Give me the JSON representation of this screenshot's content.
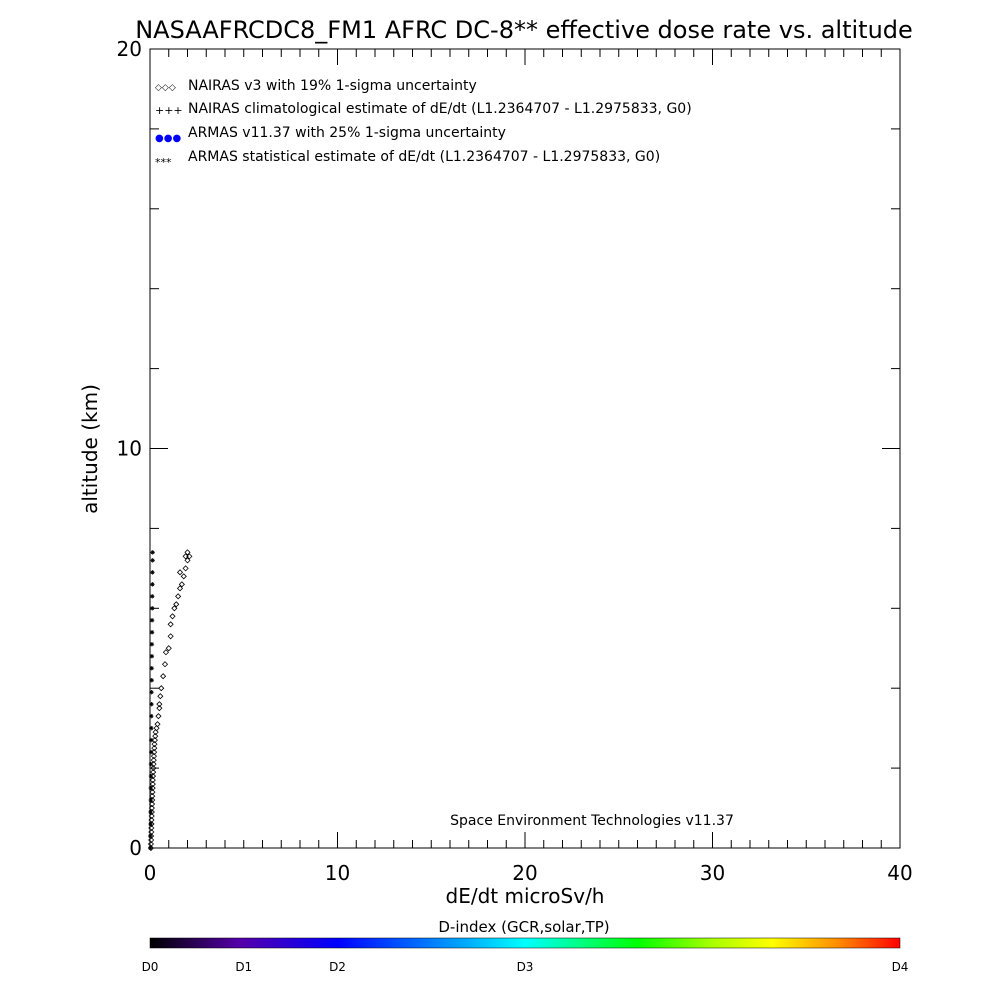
{
  "chart_data": {
    "type": "scatter",
    "title": "NASAAFRCDC8_FM1 AFRC DC-8** effective dose rate vs. altitude",
    "xlabel": "dE/dt microSv/h",
    "ylabel": "altitude (km)",
    "xlim": [
      0,
      40
    ],
    "ylim": [
      0,
      20
    ],
    "x_ticks": [
      0,
      10,
      20,
      30,
      40
    ],
    "y_ticks": [
      0,
      10,
      20
    ],
    "x_minor_step": 1,
    "y_minor_step": 2,
    "grid": false,
    "legend_position": "top-left",
    "legend": [
      {
        "symbol": "◇◇◇",
        "label": "NAIRAS v3 with 19% 1-sigma uncertainty",
        "color": "#000000"
      },
      {
        "symbol": "+++",
        "label": "NAIRAS climatological estimate of dE/dt (L1.2364707 - L1.2975833, G0)",
        "color": "#000000"
      },
      {
        "symbol": "●●●",
        "label": "ARMAS v11.37 with 25% 1-sigma uncertainty",
        "color": "#0000ff"
      },
      {
        "symbol": "***",
        "label": "ARMAS statistical estimate of dE/dt (L1.2364707 - L1.2975833, G0)",
        "color": "#000000"
      }
    ],
    "annotation": "Space Environment Technologies v11.37",
    "series": [
      {
        "marker": "diamond",
        "color": "#000000",
        "points": [
          [
            0.05,
            0.0
          ],
          [
            0.05,
            0.1
          ],
          [
            0.06,
            0.2
          ],
          [
            0.06,
            0.3
          ],
          [
            0.07,
            0.4
          ],
          [
            0.07,
            0.5
          ],
          [
            0.08,
            0.6
          ],
          [
            0.08,
            0.7
          ],
          [
            0.09,
            0.8
          ],
          [
            0.1,
            0.9
          ],
          [
            0.1,
            1.0
          ],
          [
            0.11,
            1.1
          ],
          [
            0.12,
            1.2
          ],
          [
            0.12,
            1.3
          ],
          [
            0.13,
            1.4
          ],
          [
            0.14,
            1.5
          ],
          [
            0.15,
            1.6
          ],
          [
            0.15,
            1.7
          ],
          [
            0.16,
            1.8
          ],
          [
            0.17,
            1.9
          ],
          [
            0.18,
            2.0
          ],
          [
            0.19,
            2.1
          ],
          [
            0.2,
            2.2
          ],
          [
            0.21,
            2.3
          ],
          [
            0.22,
            2.4
          ],
          [
            0.23,
            2.5
          ],
          [
            0.24,
            2.6
          ],
          [
            0.26,
            2.7
          ],
          [
            0.28,
            2.8
          ],
          [
            0.3,
            2.9
          ],
          [
            0.35,
            3.0
          ],
          [
            0.4,
            3.1
          ],
          [
            0.45,
            3.3
          ],
          [
            0.5,
            3.5
          ],
          [
            0.5,
            3.6
          ],
          [
            0.55,
            3.8
          ],
          [
            0.6,
            4.0
          ],
          [
            0.7,
            4.3
          ],
          [
            0.8,
            4.6
          ],
          [
            0.85,
            4.9
          ],
          [
            1.0,
            5.0
          ],
          [
            1.1,
            5.3
          ],
          [
            1.1,
            5.6
          ],
          [
            1.2,
            5.8
          ],
          [
            1.3,
            6.0
          ],
          [
            1.4,
            6.1
          ],
          [
            1.5,
            6.3
          ],
          [
            1.6,
            6.5
          ],
          [
            1.7,
            6.6
          ],
          [
            1.8,
            6.8
          ],
          [
            1.6,
            6.9
          ],
          [
            1.9,
            7.0
          ],
          [
            2.0,
            7.2
          ],
          [
            2.1,
            7.3
          ],
          [
            2.0,
            7.4
          ],
          [
            1.9,
            7.3
          ]
        ]
      },
      {
        "marker": "star",
        "color": "#000000",
        "points": [
          [
            0.02,
            0.0
          ],
          [
            0.02,
            0.3
          ],
          [
            0.03,
            0.6
          ],
          [
            0.03,
            0.9
          ],
          [
            0.04,
            1.2
          ],
          [
            0.04,
            1.5
          ],
          [
            0.05,
            1.8
          ],
          [
            0.05,
            2.1
          ],
          [
            0.06,
            2.4
          ],
          [
            0.06,
            2.7
          ],
          [
            0.07,
            3.0
          ],
          [
            0.07,
            3.3
          ],
          [
            0.08,
            3.6
          ],
          [
            0.08,
            3.9
          ],
          [
            0.09,
            4.2
          ],
          [
            0.09,
            4.5
          ],
          [
            0.1,
            4.8
          ],
          [
            0.1,
            5.1
          ],
          [
            0.11,
            5.4
          ],
          [
            0.11,
            5.7
          ],
          [
            0.12,
            6.0
          ],
          [
            0.12,
            6.3
          ],
          [
            0.13,
            6.6
          ],
          [
            0.13,
            6.9
          ],
          [
            0.14,
            7.2
          ],
          [
            0.14,
            7.4
          ]
        ]
      }
    ],
    "colorbar": {
      "title": "D-index (GCR,solar,TP)",
      "labels": [
        {
          "text": "D0",
          "position": 0.0
        },
        {
          "text": "D1",
          "position": 0.125
        },
        {
          "text": "D2",
          "position": 0.25
        },
        {
          "text": "D3",
          "position": 0.5
        },
        {
          "text": "D4",
          "position": 1.0
        }
      ],
      "colors": [
        "#000000",
        "#5500aa",
        "#0000ff",
        "#00aaff",
        "#00ffff",
        "#00ff00",
        "#aaff00",
        "#ffff00",
        "#ff8800",
        "#ff0000"
      ]
    }
  }
}
